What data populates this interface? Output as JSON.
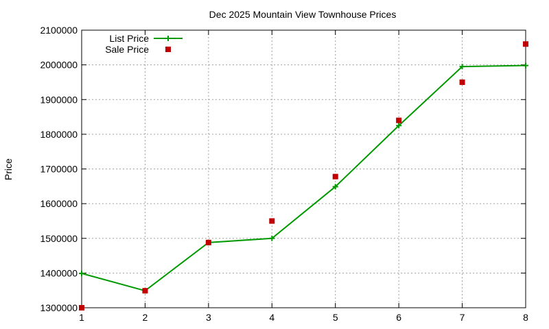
{
  "chart_data": {
    "type": "line",
    "title": "Dec 2025 Mountain View Townhouse Prices",
    "xlabel": "",
    "ylabel": "Price",
    "xlim": [
      1,
      8
    ],
    "ylim": [
      1300000,
      2100000
    ],
    "xticks": [
      1,
      2,
      3,
      4,
      5,
      6,
      7,
      8
    ],
    "yticks": [
      1300000,
      1400000,
      1500000,
      1600000,
      1700000,
      1800000,
      1900000,
      2000000,
      2100000
    ],
    "grid": true,
    "legend_position": "top-left",
    "series": [
      {
        "name": "List Price",
        "style": "line-with-plus",
        "color": "#009900",
        "x": [
          1,
          2,
          3,
          4,
          5,
          6,
          7,
          8
        ],
        "y": [
          1399000,
          1349000,
          1488000,
          1500000,
          1649000,
          1825000,
          1995000,
          1998000
        ]
      },
      {
        "name": "Sale Price",
        "style": "square",
        "color": "#c00000",
        "x": [
          1,
          2,
          3,
          4,
          5,
          6,
          7,
          8
        ],
        "y": [
          1300000,
          1349000,
          1488000,
          1550000,
          1678000,
          1840000,
          1950000,
          2060000
        ]
      }
    ]
  }
}
